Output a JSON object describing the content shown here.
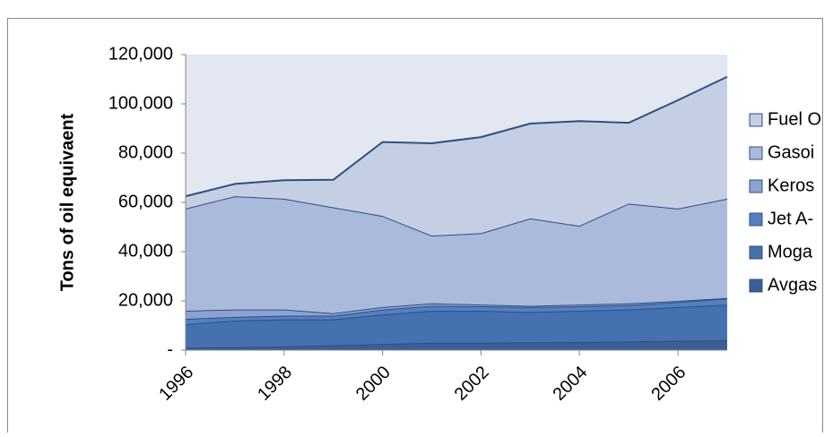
{
  "chart_data": {
    "type": "stacked-area",
    "y_label": "Tons of oil equivaent",
    "x": [
      1996,
      1997,
      1998,
      1999,
      2000,
      2001,
      2002,
      2003,
      2004,
      2005,
      2006,
      2007
    ],
    "xlim": [
      1996,
      2007
    ],
    "xticks": [
      1996,
      1998,
      2000,
      2002,
      2004,
      2006
    ],
    "ylim": [
      0,
      120000
    ],
    "yticks": [
      {
        "value": 0,
        "label": "-"
      },
      {
        "value": 20000,
        "label": "20,000"
      },
      {
        "value": 40000,
        "label": "40,000"
      },
      {
        "value": 60000,
        "label": "60,000"
      },
      {
        "value": 80000,
        "label": "80,000"
      },
      {
        "value": 100000,
        "label": "100,000"
      },
      {
        "value": 120000,
        "label": "120,000"
      }
    ],
    "legend": "right",
    "series": [
      {
        "name": "Avgas",
        "color": "#3b5e96",
        "values": [
          1000,
          1200,
          1500,
          2000,
          2500,
          3000,
          3000,
          3200,
          3300,
          3500,
          3800,
          4000
        ]
      },
      {
        "name": "Moga",
        "color": "#4571b0",
        "values": [
          9500,
          10800,
          11000,
          10500,
          12000,
          13000,
          13000,
          12300,
          12700,
          13000,
          13700,
          14500
        ]
      },
      {
        "name": "Jet A-",
        "color": "#5480c1",
        "values": [
          2200,
          1500,
          1500,
          1500,
          2000,
          2000,
          1800,
          2000,
          1800,
          1800,
          2000,
          2500
        ]
      },
      {
        "name": "Keros",
        "color": "#8da2d0",
        "values": [
          3300,
          3000,
          2500,
          1000,
          1000,
          1000,
          700,
          500,
          700,
          700,
          500,
          200
        ]
      },
      {
        "name": "Gasoi",
        "color": "#abb9da",
        "values": [
          41500,
          46000,
          45000,
          43000,
          37000,
          27500,
          29000,
          35500,
          32000,
          40500,
          37500,
          40300
        ]
      },
      {
        "name": "Fuel O",
        "color": "#c5cfe4",
        "values": [
          5000,
          5000,
          7500,
          11200,
          30000,
          37500,
          39000,
          38500,
          42500,
          32800,
          44000,
          49500
        ]
      }
    ]
  }
}
